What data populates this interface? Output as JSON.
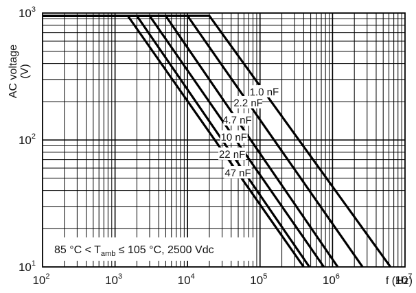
{
  "chart_data": {
    "type": "line",
    "xscale": "log",
    "yscale": "log",
    "xlim": [
      100,
      10000000
    ],
    "ylim": [
      10,
      1000
    ],
    "grid": true,
    "xlabel": "f (Hz)",
    "ylabel": "AC voltage",
    "ylabel_unit": "(V)",
    "x_ticks": [
      {
        "base": "10",
        "exp": "2",
        "value": 100
      },
      {
        "base": "10",
        "exp": "3",
        "value": 1000
      },
      {
        "base": "10",
        "exp": "4",
        "value": 10000
      },
      {
        "base": "10",
        "exp": "5",
        "value": 100000
      },
      {
        "base": "10",
        "exp": "6",
        "value": 1000000
      },
      {
        "base": "10",
        "exp": "7",
        "value": 10000000
      }
    ],
    "y_ticks": [
      {
        "base": "10",
        "exp": "1",
        "value": 10
      },
      {
        "base": "10",
        "exp": "2",
        "value": 100
      },
      {
        "base": "10",
        "exp": "3",
        "value": 1000
      }
    ],
    "annotation": {
      "prefix": "85 °C < T",
      "subscript": "amb",
      "suffix": " ≤ 105 °C, 2500 Vdc"
    },
    "series": [
      {
        "name": "1.0 nF",
        "points": [
          [
            100,
            950
          ],
          [
            20000,
            950
          ],
          [
            6300000,
            10
          ]
        ]
      },
      {
        "name": "2.2 nF",
        "points": [
          [
            100,
            950
          ],
          [
            10000,
            950
          ],
          [
            2600000,
            10
          ]
        ]
      },
      {
        "name": "4.7 nF",
        "points": [
          [
            100,
            950
          ],
          [
            5000,
            950
          ],
          [
            1180000,
            10
          ]
        ]
      },
      {
        "name": "10 nF",
        "points": [
          [
            100,
            950
          ],
          [
            3000,
            950
          ],
          [
            760000,
            10
          ]
        ]
      },
      {
        "name": "22 nF",
        "points": [
          [
            100,
            950
          ],
          [
            2000,
            950
          ],
          [
            480000,
            10
          ]
        ]
      },
      {
        "name": "47 nF",
        "points": [
          [
            100,
            950
          ],
          [
            1500,
            950
          ],
          [
            400000,
            10
          ]
        ]
      }
    ]
  }
}
